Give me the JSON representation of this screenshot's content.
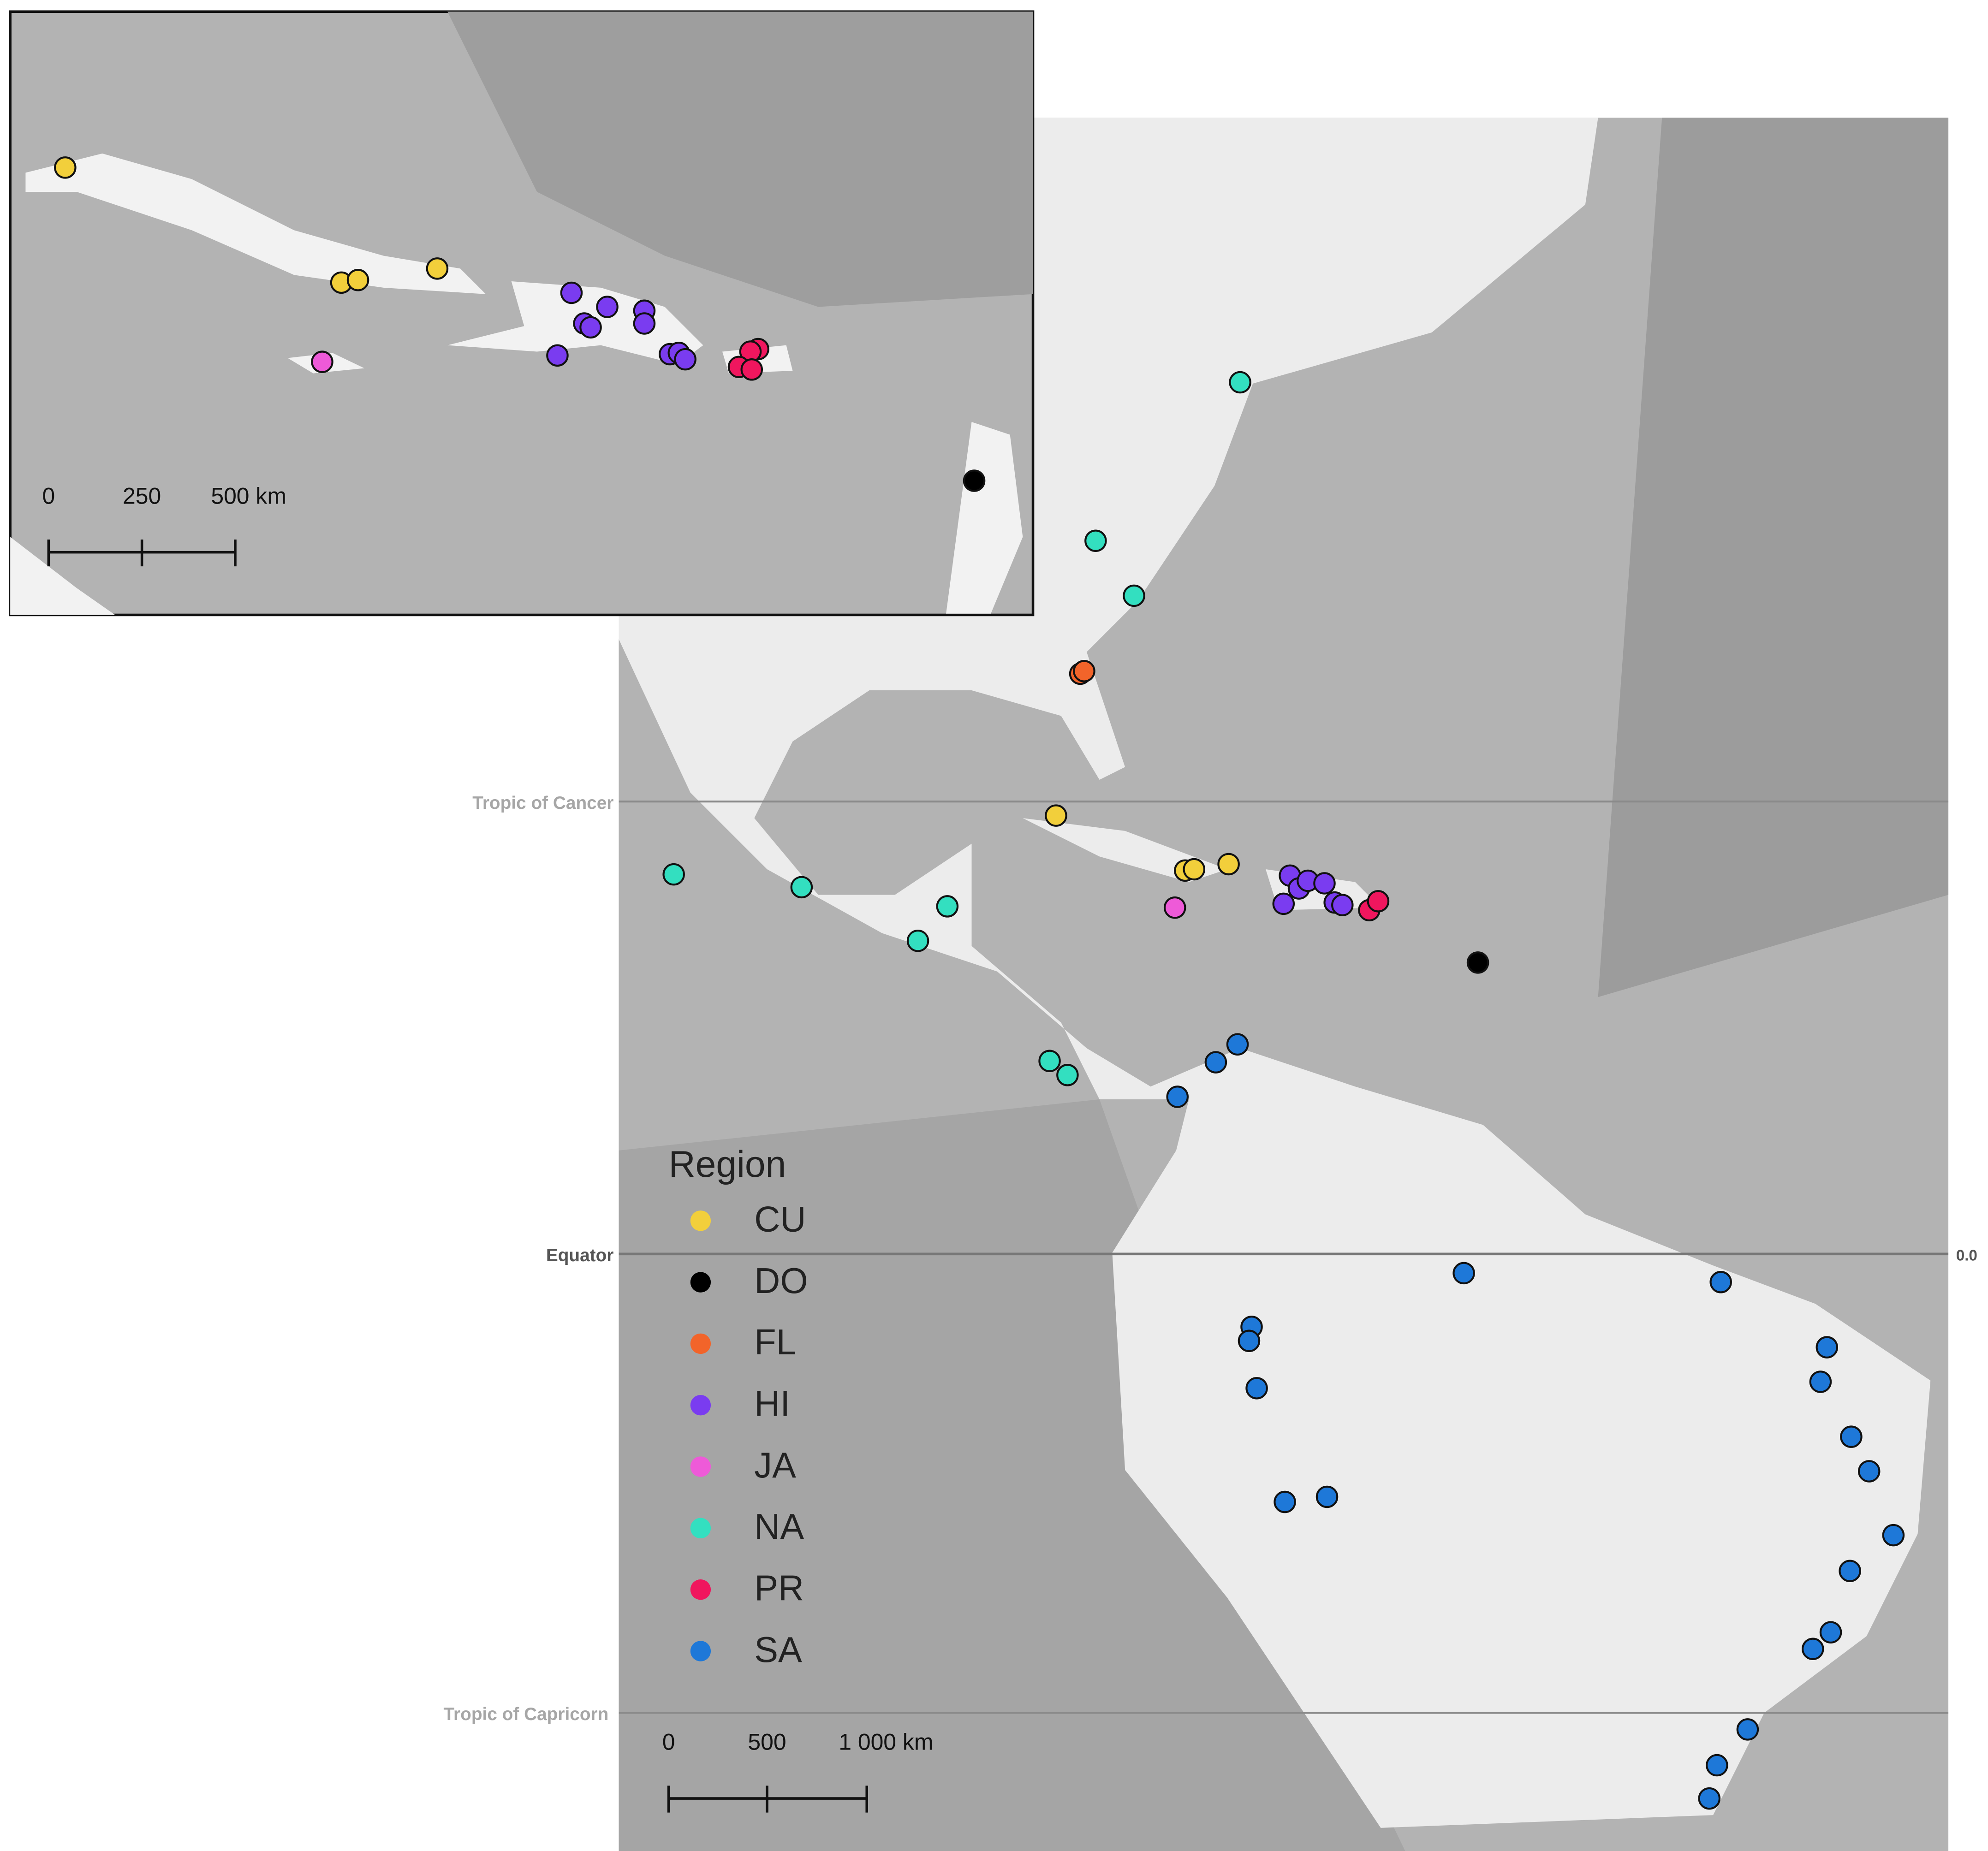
{
  "main": {
    "latitude_lines": [
      {
        "label": "Tropic of Cancer"
      },
      {
        "label": "Equator"
      },
      {
        "label": "Tropic of Capricorn"
      }
    ],
    "equator_value": "0.0",
    "scale_bar": [
      "0",
      "500",
      "1 000 km"
    ]
  },
  "inset": {
    "scale_bar": [
      "0",
      "250",
      "500 km"
    ]
  },
  "legend": {
    "title": "Region",
    "items": [
      {
        "label": "CU",
        "color": "#f2cf3b"
      },
      {
        "label": "DO",
        "color": "#000000"
      },
      {
        "label": "FL",
        "color": "#f2642a"
      },
      {
        "label": "HI",
        "color": "#7a3cf0"
      },
      {
        "label": "JA",
        "color": "#ee5ad8"
      },
      {
        "label": "NA",
        "color": "#33dfc0"
      },
      {
        "label": "PR",
        "color": "#f0165e"
      },
      {
        "label": "SA",
        "color": "#1e78d8"
      }
    ]
  }
}
